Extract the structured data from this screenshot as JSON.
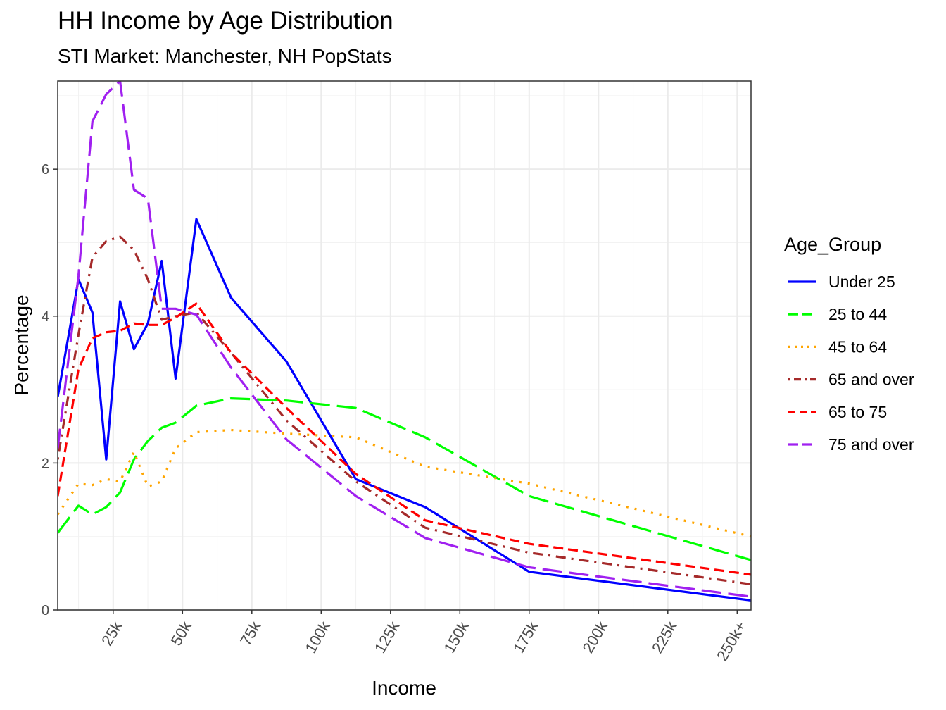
{
  "title": "HH Income by Age Distribution",
  "subtitle": "STI Market: Manchester, NH PopStats",
  "chart_data": {
    "type": "line",
    "title": "HH Income by Age Distribution",
    "subtitle": "STI Market: Manchester, NH PopStats",
    "xlabel": "Income",
    "ylabel": "Percentage",
    "xlim": [
      5,
      255
    ],
    "ylim": [
      0,
      7.2
    ],
    "x_ticks": [
      25,
      50,
      75,
      100,
      125,
      150,
      175,
      200,
      225,
      250
    ],
    "x_tick_labels": [
      "25k",
      "50k",
      "75k",
      "100k",
      "125k",
      "150k",
      "175k",
      "200k",
      "225k",
      "250k+"
    ],
    "y_ticks": [
      0,
      2,
      4,
      6
    ],
    "y_tick_labels": [
      "0",
      "2",
      "4",
      "6"
    ],
    "grid": true,
    "legend_title": "Age_Group",
    "legend_position": "right",
    "series": [
      {
        "name": "Under 25",
        "color": "#0000FF",
        "dash": "solid",
        "x": [
          5,
          12.5,
          17.5,
          22.5,
          27.5,
          32.5,
          37.5,
          42.5,
          47.5,
          55,
          67.5,
          87.5,
          112.5,
          137.5,
          175,
          255
        ],
        "y": [
          2.9,
          4.5,
          4.05,
          2.05,
          4.2,
          3.55,
          3.9,
          4.75,
          3.15,
          5.32,
          4.25,
          3.38,
          1.78,
          1.4,
          0.52,
          0.13
        ]
      },
      {
        "name": "25 to 44",
        "color": "#00FF00",
        "dash": "longdash",
        "x": [
          5,
          12.5,
          17.5,
          22.5,
          27.5,
          32.5,
          37.5,
          42.5,
          47.5,
          55,
          67.5,
          87.5,
          112.5,
          137.5,
          175,
          255
        ],
        "y": [
          1.05,
          1.42,
          1.3,
          1.4,
          1.6,
          2.05,
          2.3,
          2.48,
          2.55,
          2.78,
          2.88,
          2.85,
          2.75,
          2.35,
          1.55,
          0.68
        ]
      },
      {
        "name": "45 to 64",
        "color": "#FFA500",
        "dash": "dotted",
        "x": [
          5,
          12.5,
          17.5,
          22.5,
          27.5,
          32.5,
          37.5,
          42.5,
          47.5,
          55,
          67.5,
          87.5,
          112.5,
          137.5,
          175,
          255
        ],
        "y": [
          1.3,
          1.72,
          1.7,
          1.78,
          1.75,
          2.15,
          1.68,
          1.75,
          2.2,
          2.42,
          2.45,
          2.4,
          2.35,
          1.95,
          1.72,
          1.0
        ]
      },
      {
        "name": "65 and over",
        "color": "#A52A2A",
        "dash": "dotdash",
        "x": [
          5,
          12.5,
          17.5,
          22.5,
          27.5,
          32.5,
          37.5,
          42.5,
          47.5,
          55,
          67.5,
          87.5,
          112.5,
          137.5,
          175,
          255
        ],
        "y": [
          2.05,
          3.75,
          4.8,
          5.02,
          5.08,
          4.9,
          4.5,
          3.95,
          4.0,
          4.05,
          3.5,
          2.58,
          1.75,
          1.12,
          0.78,
          0.35
        ]
      },
      {
        "name": "65 to 75",
        "color": "#FF0000",
        "dash": "dashed",
        "x": [
          5,
          12.5,
          17.5,
          22.5,
          27.5,
          32.5,
          37.5,
          42.5,
          47.5,
          55,
          67.5,
          87.5,
          112.5,
          137.5,
          175,
          255
        ],
        "y": [
          1.55,
          3.28,
          3.7,
          3.78,
          3.8,
          3.9,
          3.88,
          3.88,
          3.98,
          4.17,
          3.5,
          2.75,
          1.85,
          1.22,
          0.9,
          0.48
        ]
      },
      {
        "name": "75 and over",
        "color": "#A020F0",
        "dash": "longdash",
        "x": [
          5,
          12.5,
          17.5,
          22.5,
          27.5,
          32.5,
          37.5,
          42.5,
          47.5,
          55,
          67.5,
          87.5,
          112.5,
          137.5,
          175,
          255
        ],
        "y": [
          2.2,
          4.55,
          6.65,
          7.02,
          7.2,
          5.72,
          5.6,
          4.1,
          4.1,
          4.02,
          3.3,
          2.32,
          1.55,
          0.98,
          0.58,
          0.18
        ]
      }
    ]
  }
}
